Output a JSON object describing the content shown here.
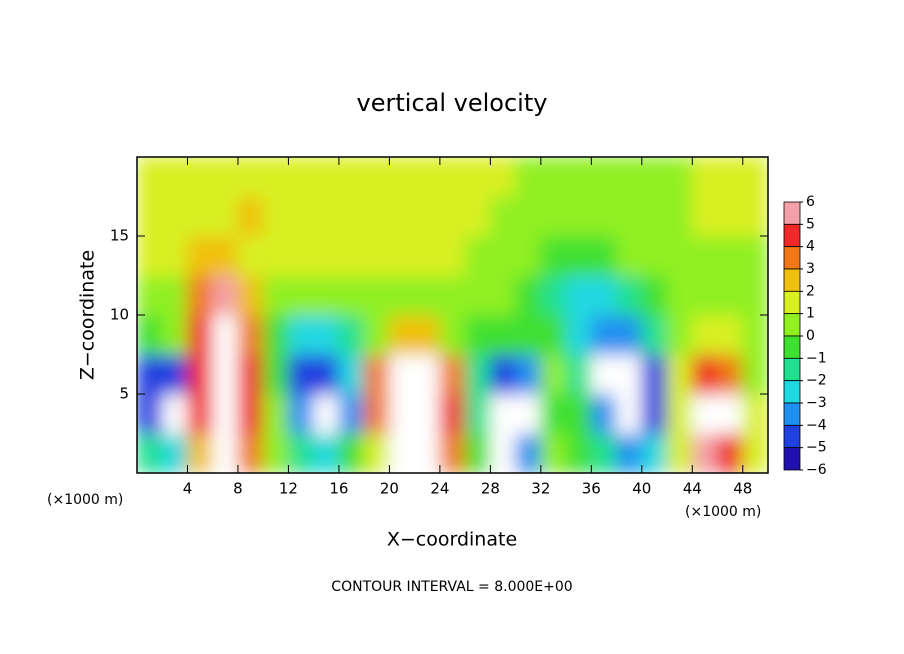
{
  "chart_data": {
    "type": "heatmap",
    "title": "vertical velocity",
    "x_label": "X−coordinate",
    "y_label": "Z−coordinate",
    "x_unit": "(×1000 m)",
    "y_unit": "(×1000 m)",
    "note": "CONTOUR INTERVAL = 8.000E+00",
    "xlim": [
      0,
      50
    ],
    "ylim": [
      0,
      20
    ],
    "xticks": [
      4,
      8,
      12,
      16,
      20,
      24,
      28,
      32,
      36,
      40,
      44,
      48
    ],
    "yticks": [
      5,
      10,
      15
    ],
    "x": [
      1,
      3,
      5,
      7,
      9,
      11,
      13,
      15,
      17,
      19,
      21,
      23,
      25,
      27,
      29,
      31,
      33,
      35,
      37,
      39,
      41,
      43,
      45,
      47,
      49
    ],
    "y": [
      1.25,
      3.75,
      6.25,
      8.75,
      11.25,
      13.75,
      16.25,
      18.75
    ],
    "z": [
      [
        -2,
        -3,
        2,
        8,
        3,
        0,
        -2,
        -3,
        -1,
        1,
        8,
        8,
        3,
        -1,
        -7,
        -4,
        0,
        -1,
        -2,
        -4,
        -3,
        1,
        5,
        4,
        1
      ],
      [
        -5,
        -7,
        4,
        8,
        4,
        0,
        -4,
        -7,
        -4,
        3,
        8,
        8,
        4,
        -2,
        -7,
        -7,
        -1,
        -1,
        -4,
        -7,
        -5,
        1,
        8,
        7,
        1
      ],
      [
        -5,
        -5,
        4,
        8,
        4,
        -1,
        -5,
        -5,
        -3,
        3,
        8,
        8,
        3,
        -2,
        -5,
        -4,
        0,
        -2,
        -7,
        -7,
        -5,
        1,
        4,
        3,
        0
      ],
      [
        -1,
        0,
        4,
        7,
        3,
        -1,
        -3,
        -3,
        -2,
        0,
        2,
        2,
        0,
        -1,
        -1,
        -1,
        -1,
        -3,
        -4,
        -4,
        -2,
        0,
        1,
        1,
        0
      ],
      [
        0,
        0,
        3,
        5,
        2,
        0,
        0,
        0,
        0,
        0,
        0,
        0,
        0,
        0,
        0,
        -1,
        -2,
        -3,
        -3,
        -2,
        -1,
        0,
        0,
        0,
        0
      ],
      [
        1,
        1,
        2,
        2,
        1,
        1,
        1,
        1,
        1,
        1,
        1,
        1,
        1,
        0,
        0,
        0,
        -1,
        -1,
        -1,
        0,
        0,
        0,
        0,
        0,
        0
      ],
      [
        1,
        1,
        1,
        1,
        2,
        1,
        1,
        1,
        1,
        1,
        1,
        1,
        1,
        1,
        0,
        0,
        0,
        0,
        0,
        0,
        0,
        0,
        1,
        1,
        1
      ],
      [
        1,
        1,
        1,
        1,
        1,
        1,
        1,
        1,
        1,
        1,
        1,
        1,
        1,
        1,
        1,
        0,
        0,
        0,
        0,
        0,
        0,
        0,
        1,
        1,
        1
      ]
    ],
    "levels": [
      6,
      5,
      4,
      3,
      2,
      1,
      0,
      {
        "value": -1,
        "label": "−1"
      },
      {
        "value": -2,
        "label": "−2"
      },
      {
        "value": -3,
        "label": "−3"
      },
      {
        "value": -4,
        "label": "−4"
      },
      {
        "value": -5,
        "label": "−5"
      },
      {
        "value": -6,
        "label": "−6"
      }
    ],
    "colors": [
      "#f4a0a8",
      "#f02828",
      "#f07818",
      "#f0c010",
      "#d8f020",
      "#90f020",
      "#40e030",
      "#20e090",
      "#20d8e0",
      "#2090f0",
      "#2040e0",
      "#2010b0"
    ],
    "out_of_range_color": "#ffffff"
  }
}
